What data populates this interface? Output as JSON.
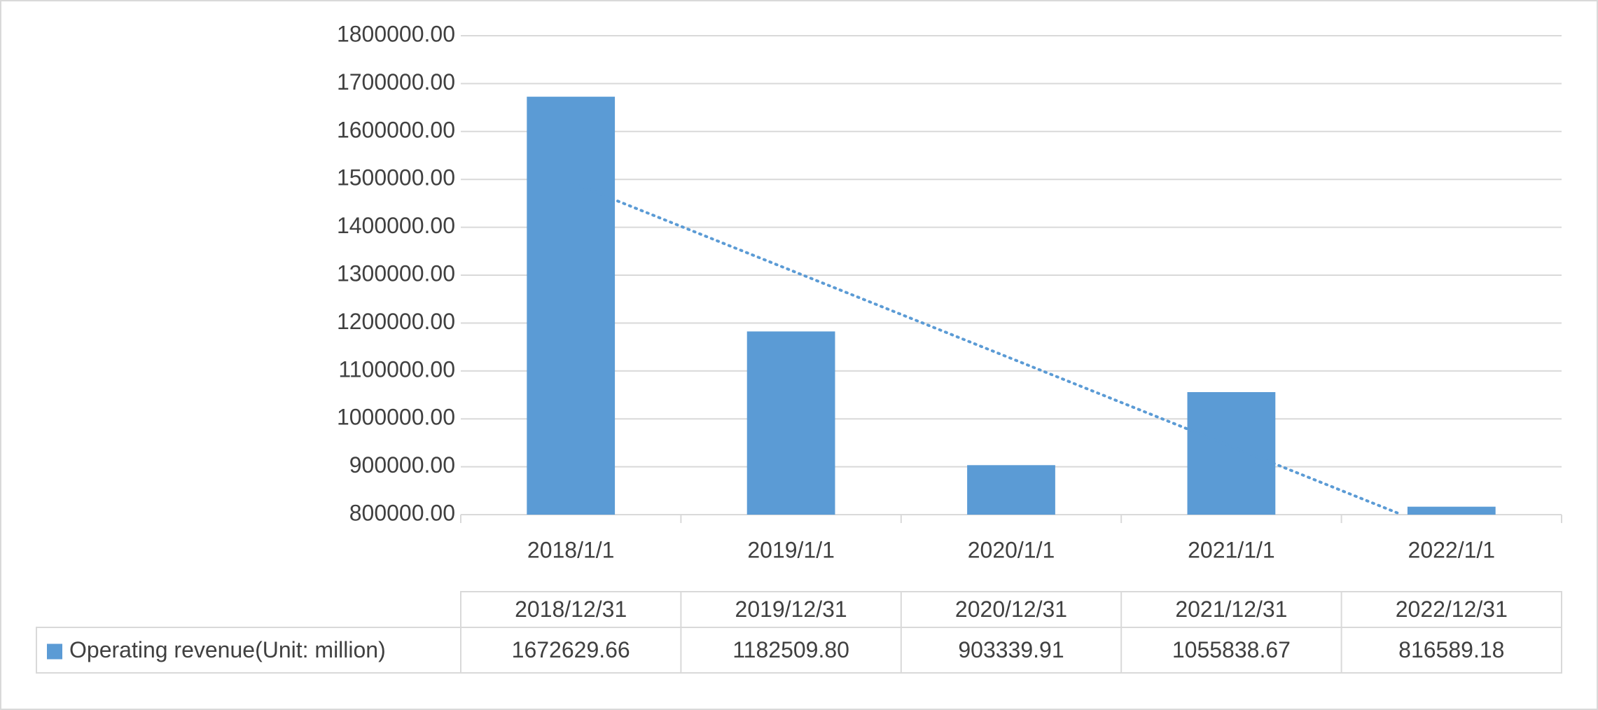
{
  "chart_data": {
    "type": "bar",
    "categories": [
      "2018/1/1",
      "2019/1/1",
      "2020/1/1",
      "2021/1/1",
      "2022/1/1"
    ],
    "table_categories": [
      "2018/12/31",
      "2019/12/31",
      "2020/12/31",
      "2021/12/31",
      "2022/12/31"
    ],
    "series": [
      {
        "name": "Operating revenue(Unit: million)",
        "color": "#5b9bd5",
        "values": [
          1672629.66,
          1182509.8,
          903339.91,
          1055838.67,
          816589.18
        ],
        "value_labels": [
          "1672629.66",
          "1182509.80",
          "903339.91",
          "1055838.67",
          "816589.18"
        ]
      }
    ],
    "ylim": [
      800000,
      1800000
    ],
    "yticks": [
      {
        "value": 800000,
        "label": "800000.00"
      },
      {
        "value": 900000,
        "label": "900000.00"
      },
      {
        "value": 1000000,
        "label": "1000000.00"
      },
      {
        "value": 1100000,
        "label": "1100000.00"
      },
      {
        "value": 1200000,
        "label": "1200000.00"
      },
      {
        "value": 1300000,
        "label": "1300000.00"
      },
      {
        "value": 1400000,
        "label": "1400000.00"
      },
      {
        "value": 1500000,
        "label": "1500000.00"
      },
      {
        "value": 1600000,
        "label": "1600000.00"
      },
      {
        "value": 1700000,
        "label": "1700000.00"
      },
      {
        "value": 1800000,
        "label": "1800000.00"
      }
    ],
    "grid": true,
    "trendline": "linear",
    "data_table": true
  }
}
